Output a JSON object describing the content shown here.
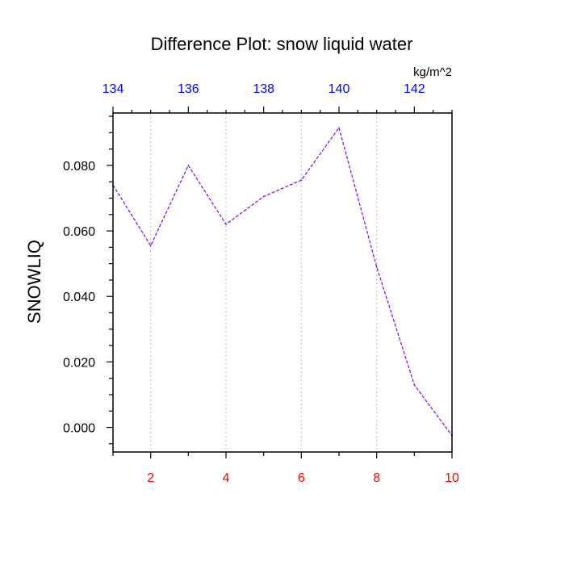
{
  "chart_data": {
    "type": "line",
    "title": "Difference Plot: snow liquid water",
    "units": "kg/m^2",
    "ylabel": "SNOWLIQ",
    "x": [
      1,
      2,
      3,
      4,
      5,
      6,
      7,
      8,
      9,
      10
    ],
    "series": [
      {
        "values": [
          0.074,
          0.0555,
          0.08,
          0.062,
          0.0705,
          0.0755,
          0.0915,
          0.049,
          0.013,
          -0.0025
        ],
        "color": "#8000ff",
        "style": "dashed"
      }
    ],
    "xlim": [
      1,
      10
    ],
    "ylim": [
      -0.0075,
      0.096
    ],
    "bottom_axis": {
      "ticks": [
        2,
        4,
        6,
        8,
        10
      ],
      "labels": [
        "2",
        "4",
        "6",
        "8",
        "10"
      ],
      "color": "#ff0000"
    },
    "top_axis": {
      "range": [
        134,
        143
      ],
      "ticks": [
        134,
        136,
        138,
        140,
        142
      ],
      "labels": [
        "134",
        "136",
        "138",
        "140",
        "142"
      ],
      "color": "#0000ff"
    },
    "left_axis": {
      "ticks": [
        0.0,
        0.02,
        0.04,
        0.06,
        0.08
      ],
      "labels": [
        "0.000",
        "0.020",
        "0.040",
        "0.060",
        "0.080"
      ],
      "color": "#000000"
    },
    "grid": "vertical-dotted"
  }
}
